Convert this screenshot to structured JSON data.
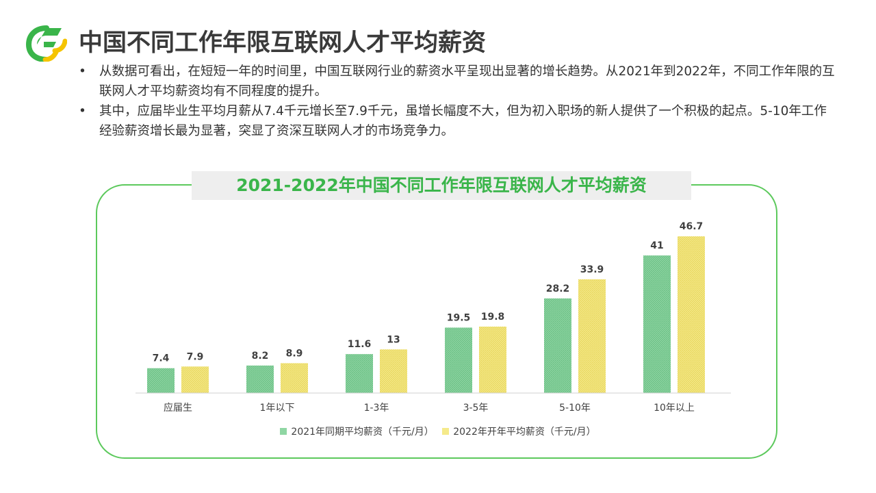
{
  "header": {
    "title": "中国不同工作年限互联网人才平均薪资",
    "logo_icon": "leaf-logo-icon"
  },
  "bullets": [
    "从数据可看出，在短短一年的时间里，中国互联网行业的薪资水平呈现出显著的增长趋势。从2021年到2022年，不同工作年限的互联网人才平均薪资均有不同程度的提升。",
    "其中，应届毕业生平均月薪从7.4千元增长至7.9千元，虽增长幅度不大，但为初入职场的新人提供了一个积极的起点。5-10年工作经验薪资增长最为显著，突显了资深互联网人才的市场竞争力。"
  ],
  "bullet_symbol": "•",
  "colors": {
    "accent_green": "#3ab54a",
    "border_green": "#5cc95c",
    "series_2021": "#7fcf96",
    "series_2022": "#f2e47a"
  },
  "chart_data": {
    "type": "bar",
    "title": "2021-2022年中国不同工作年限互联网人才平均薪资",
    "categories": [
      "应届生",
      "1年以下",
      "1-3年",
      "3-5年",
      "5-10年",
      "10年以上"
    ],
    "series": [
      {
        "name": "2021年同期平均薪资（千元/月）",
        "values": [
          7.4,
          8.2,
          11.6,
          19.5,
          28.2,
          41
        ],
        "color": "#7fcf96"
      },
      {
        "name": "2022年开年平均薪资（千元/月）",
        "values": [
          7.9,
          8.9,
          13,
          19.8,
          33.9,
          46.7
        ],
        "color": "#f2e47a"
      }
    ],
    "ylim": [
      0,
      50
    ],
    "grid": false,
    "legend": "bottom",
    "data_labels": true
  }
}
